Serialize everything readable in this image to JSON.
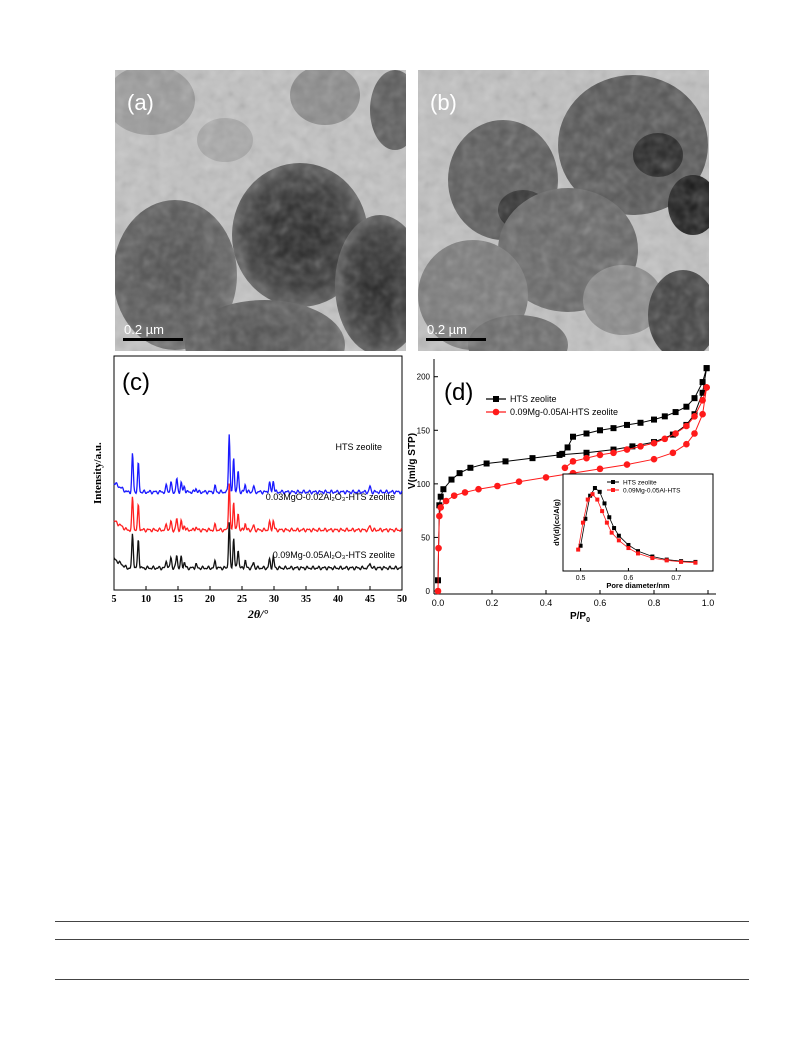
{
  "figure": {
    "panel_a": {
      "label": "(a)",
      "scale_bar": "0.2 µm"
    },
    "panel_b": {
      "label": "(b)",
      "scale_bar": "0.2 µm"
    }
  },
  "chart_data": [
    {
      "type": "line",
      "panel_label": "(c)",
      "xlabel": "2θ/°",
      "ylabel": "Intensity/a.u.",
      "xlim": [
        5,
        50
      ],
      "xticks": [
        5,
        10,
        15,
        20,
        25,
        30,
        35,
        40,
        45,
        50
      ],
      "series": [
        {
          "name": "HTS zeolite",
          "color": "#1a1aff",
          "offset": 2.0,
          "peaks": [
            [
              7.9,
              1.0
            ],
            [
              8.8,
              0.75
            ],
            [
              13.2,
              0.18
            ],
            [
              13.9,
              0.25
            ],
            [
              14.8,
              0.35
            ],
            [
              15.5,
              0.25
            ],
            [
              16.0,
              0.15
            ],
            [
              17.8,
              0.1
            ],
            [
              20.8,
              0.15
            ],
            [
              23.0,
              1.55
            ],
            [
              23.7,
              0.9
            ],
            [
              24.4,
              0.55
            ],
            [
              25.5,
              0.2
            ],
            [
              26.8,
              0.15
            ],
            [
              29.3,
              0.25
            ],
            [
              29.9,
              0.3
            ],
            [
              45.0,
              0.15
            ]
          ]
        },
        {
          "name": "0.03MgO-0.02Al₂O₃-HTS zeolite",
          "color": "#ff2020",
          "offset": 1.0,
          "peaks": [
            [
              7.9,
              0.85
            ],
            [
              8.8,
              0.65
            ],
            [
              13.2,
              0.15
            ],
            [
              13.9,
              0.22
            ],
            [
              14.8,
              0.3
            ],
            [
              15.5,
              0.22
            ],
            [
              16.0,
              0.12
            ],
            [
              17.8,
              0.08
            ],
            [
              20.8,
              0.13
            ],
            [
              23.0,
              1.25
            ],
            [
              23.7,
              0.75
            ],
            [
              24.4,
              0.45
            ],
            [
              25.5,
              0.18
            ],
            [
              26.8,
              0.12
            ],
            [
              29.3,
              0.2
            ],
            [
              29.9,
              0.25
            ],
            [
              45.0,
              0.12
            ]
          ]
        },
        {
          "name": "0.09Mg-0.05Al₂O₃-HTS zeolite",
          "color": "#111111",
          "offset": 0.0,
          "peaks": [
            [
              7.9,
              0.9
            ],
            [
              8.8,
              0.75
            ],
            [
              13.2,
              0.2
            ],
            [
              13.9,
              0.28
            ],
            [
              14.8,
              0.35
            ],
            [
              15.5,
              0.28
            ],
            [
              16.0,
              0.15
            ],
            [
              17.8,
              0.1
            ],
            [
              20.8,
              0.18
            ],
            [
              23.0,
              1.2
            ],
            [
              23.7,
              0.8
            ],
            [
              24.4,
              0.5
            ],
            [
              25.5,
              0.2
            ],
            [
              26.8,
              0.15
            ],
            [
              29.3,
              0.22
            ],
            [
              29.9,
              0.28
            ],
            [
              45.0,
              0.15
            ]
          ]
        }
      ]
    },
    {
      "type": "line",
      "panel_label": "(d)",
      "xlabel": "P/P",
      "xlabel_sub": "0",
      "ylabel": "V(ml/g STP)",
      "xlim": [
        0.0,
        1.0
      ],
      "ylim": [
        0,
        210
      ],
      "xticks": [
        "0.0",
        "0.2",
        "0.4",
        "0.6",
        "0.8",
        "1.0"
      ],
      "yticks": [
        "0",
        "50",
        "100",
        "150",
        "200"
      ],
      "series": [
        {
          "name": "HTS zeolite",
          "color": "#000000",
          "marker": "square",
          "adsorption": [
            [
              0.0,
              10
            ],
            [
              0.005,
              80
            ],
            [
              0.01,
              88
            ],
            [
              0.02,
              95
            ],
            [
              0.05,
              104
            ],
            [
              0.08,
              110
            ],
            [
              0.12,
              115
            ],
            [
              0.18,
              119
            ],
            [
              0.25,
              121
            ],
            [
              0.35,
              124
            ],
            [
              0.45,
              127
            ],
            [
              0.55,
              129
            ],
            [
              0.65,
              132
            ],
            [
              0.72,
              135
            ],
            [
              0.8,
              139
            ],
            [
              0.87,
              146
            ],
            [
              0.92,
              155
            ],
            [
              0.95,
              165
            ],
            [
              0.98,
              185
            ],
            [
              0.995,
              208
            ]
          ],
          "desorption": [
            [
              0.995,
              208
            ],
            [
              0.98,
              195
            ],
            [
              0.95,
              180
            ],
            [
              0.92,
              172
            ],
            [
              0.88,
              167
            ],
            [
              0.84,
              163
            ],
            [
              0.8,
              160
            ],
            [
              0.75,
              157
            ],
            [
              0.7,
              155
            ],
            [
              0.65,
              152
            ],
            [
              0.6,
              150
            ],
            [
              0.55,
              147
            ],
            [
              0.5,
              144
            ],
            [
              0.48,
              134
            ],
            [
              0.46,
              128
            ]
          ]
        },
        {
          "name": "0.09Mg-0.05Al-HTS zeolite",
          "color": "#ff1a1a",
          "marker": "circle",
          "adsorption": [
            [
              0.0,
              0
            ],
            [
              0.002,
              40
            ],
            [
              0.005,
              70
            ],
            [
              0.01,
              78
            ],
            [
              0.03,
              84
            ],
            [
              0.06,
              89
            ],
            [
              0.1,
              92
            ],
            [
              0.15,
              95
            ],
            [
              0.22,
              98
            ],
            [
              0.3,
              102
            ],
            [
              0.4,
              106
            ],
            [
              0.5,
              110
            ],
            [
              0.6,
              114
            ],
            [
              0.7,
              118
            ],
            [
              0.8,
              123
            ],
            [
              0.87,
              129
            ],
            [
              0.92,
              137
            ],
            [
              0.95,
              147
            ],
            [
              0.98,
              165
            ],
            [
              0.995,
              190
            ]
          ],
          "desorption": [
            [
              0.995,
              190
            ],
            [
              0.98,
              178
            ],
            [
              0.95,
              163
            ],
            [
              0.92,
              154
            ],
            [
              0.88,
              147
            ],
            [
              0.84,
              142
            ],
            [
              0.8,
              138
            ],
            [
              0.75,
              135
            ],
            [
              0.7,
              132
            ],
            [
              0.65,
              129
            ],
            [
              0.6,
              127
            ],
            [
              0.55,
              124
            ],
            [
              0.5,
              121
            ],
            [
              0.47,
              115
            ]
          ]
        }
      ],
      "inset": {
        "xlabel": "Pore diameter/nm",
        "ylabel": "dV(d)(cc/A/g)",
        "xlim": [
          0.48,
          0.76
        ],
        "xticks": [
          "0.5",
          "0.6",
          "0.7"
        ],
        "series": [
          {
            "name": "HTS zeolite",
            "color": "#000000",
            "points": [
              [
                0.5,
                0.25
              ],
              [
                0.51,
                0.6
              ],
              [
                0.52,
                0.9
              ],
              [
                0.53,
                1.0
              ],
              [
                0.54,
                0.95
              ],
              [
                0.55,
                0.8
              ],
              [
                0.56,
                0.62
              ],
              [
                0.57,
                0.48
              ],
              [
                0.58,
                0.38
              ],
              [
                0.6,
                0.26
              ],
              [
                0.62,
                0.18
              ],
              [
                0.65,
                0.11
              ],
              [
                0.68,
                0.07
              ],
              [
                0.71,
                0.05
              ],
              [
                0.74,
                0.04
              ]
            ]
          },
          {
            "name": "0.09Mg-0.05Al-HTS",
            "color": "#ff1a1a",
            "points": [
              [
                0.495,
                0.2
              ],
              [
                0.505,
                0.55
              ],
              [
                0.515,
                0.85
              ],
              [
                0.525,
                0.92
              ],
              [
                0.535,
                0.85
              ],
              [
                0.545,
                0.7
              ],
              [
                0.555,
                0.55
              ],
              [
                0.565,
                0.42
              ],
              [
                0.58,
                0.32
              ],
              [
                0.6,
                0.22
              ],
              [
                0.62,
                0.15
              ],
              [
                0.65,
                0.09
              ],
              [
                0.68,
                0.06
              ],
              [
                0.71,
                0.04
              ],
              [
                0.74,
                0.03
              ]
            ]
          }
        ]
      }
    }
  ]
}
